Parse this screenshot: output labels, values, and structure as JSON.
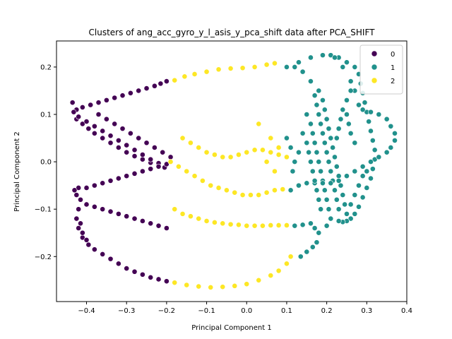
{
  "chart_data": {
    "type": "scatter",
    "title": "Clusters of ang_acc_gyro_y_l_asis_y_pca_shift data after PCA_SHIFT",
    "xlabel": "Principal Component 1",
    "ylabel": "Principal Component 2",
    "xlim": [
      -0.475,
      0.4
    ],
    "ylim": [
      -0.295,
      0.255
    ],
    "xticks": [
      "−0.4",
      "−0.3",
      "−0.2",
      "−0.1",
      "0.0",
      "0.1",
      "0.2",
      "0.3",
      "0.4"
    ],
    "xtick_values": [
      -0.4,
      -0.3,
      -0.2,
      -0.1,
      0.0,
      0.1,
      0.2,
      0.3,
      0.4
    ],
    "yticks": [
      "−0.2",
      "−0.1",
      "0.0",
      "0.1",
      "0.2"
    ],
    "ytick_values": [
      -0.2,
      -0.1,
      0.0,
      0.1,
      0.2
    ],
    "grid": false,
    "legend_position": "top-right",
    "series": [
      {
        "name": "0",
        "color": "#440154",
        "points": [
          [
            -0.2,
            0.17
          ],
          [
            -0.215,
            0.165
          ],
          [
            -0.23,
            0.16
          ],
          [
            -0.25,
            0.155
          ],
          [
            -0.27,
            0.15
          ],
          [
            -0.29,
            0.145
          ],
          [
            -0.31,
            0.14
          ],
          [
            -0.33,
            0.135
          ],
          [
            -0.35,
            0.13
          ],
          [
            -0.37,
            0.125
          ],
          [
            -0.39,
            0.12
          ],
          [
            -0.41,
            0.115
          ],
          [
            -0.425,
            0.11
          ],
          [
            -0.435,
            0.125
          ],
          [
            -0.432,
            0.105
          ],
          [
            -0.425,
            0.09
          ],
          [
            -0.41,
            0.08
          ],
          [
            -0.395,
            0.07
          ],
          [
            -0.38,
            0.06
          ],
          [
            -0.36,
            0.05
          ],
          [
            -0.34,
            0.04
          ],
          [
            -0.32,
            0.03
          ],
          [
            -0.3,
            0.02
          ],
          [
            -0.28,
            0.012
          ],
          [
            -0.26,
            0.005
          ],
          [
            -0.24,
            -0.002
          ],
          [
            -0.22,
            -0.008
          ],
          [
            -0.205,
            -0.012
          ],
          [
            -0.42,
            0.095
          ],
          [
            -0.4,
            0.085
          ],
          [
            -0.38,
            0.075
          ],
          [
            -0.36,
            0.065
          ],
          [
            -0.34,
            0.055
          ],
          [
            -0.32,
            0.045
          ],
          [
            -0.3,
            0.035
          ],
          [
            -0.28,
            0.025
          ],
          [
            -0.26,
            0.015
          ],
          [
            -0.24,
            0.005
          ],
          [
            -0.22,
            -0.003
          ],
          [
            -0.37,
            0.1
          ],
          [
            -0.35,
            0.09
          ],
          [
            -0.33,
            0.08
          ],
          [
            -0.31,
            0.07
          ],
          [
            -0.29,
            0.06
          ],
          [
            -0.27,
            0.05
          ],
          [
            -0.25,
            0.04
          ],
          [
            -0.23,
            0.03
          ],
          [
            -0.21,
            0.02
          ],
          [
            -0.19,
            0.01
          ],
          [
            -0.2,
            -0.005
          ],
          [
            -0.22,
            -0.01
          ],
          [
            -0.24,
            -0.015
          ],
          [
            -0.26,
            -0.02
          ],
          [
            -0.28,
            -0.025
          ],
          [
            -0.3,
            -0.03
          ],
          [
            -0.32,
            -0.035
          ],
          [
            -0.34,
            -0.04
          ],
          [
            -0.36,
            -0.045
          ],
          [
            -0.38,
            -0.05
          ],
          [
            -0.4,
            -0.055
          ],
          [
            -0.42,
            -0.055
          ],
          [
            -0.43,
            -0.06
          ],
          [
            -0.425,
            -0.07
          ],
          [
            -0.415,
            -0.08
          ],
          [
            -0.4,
            -0.09
          ],
          [
            -0.38,
            -0.095
          ],
          [
            -0.36,
            -0.1
          ],
          [
            -0.34,
            -0.105
          ],
          [
            -0.32,
            -0.11
          ],
          [
            -0.3,
            -0.115
          ],
          [
            -0.28,
            -0.12
          ],
          [
            -0.26,
            -0.125
          ],
          [
            -0.24,
            -0.13
          ],
          [
            -0.22,
            -0.135
          ],
          [
            -0.2,
            -0.14
          ],
          [
            -0.42,
            -0.1
          ],
          [
            -0.425,
            -0.12
          ],
          [
            -0.42,
            -0.14
          ],
          [
            -0.41,
            -0.16
          ],
          [
            -0.395,
            -0.175
          ],
          [
            -0.38,
            -0.185
          ],
          [
            -0.36,
            -0.195
          ],
          [
            -0.34,
            -0.205
          ],
          [
            -0.32,
            -0.215
          ],
          [
            -0.3,
            -0.225
          ],
          [
            -0.28,
            -0.232
          ],
          [
            -0.26,
            -0.238
          ],
          [
            -0.24,
            -0.244
          ],
          [
            -0.22,
            -0.248
          ],
          [
            -0.2,
            -0.252
          ],
          [
            -0.415,
            -0.13
          ],
          [
            -0.41,
            -0.15
          ],
          [
            -0.4,
            -0.165
          ]
        ]
      },
      {
        "name": "1",
        "color": "#21918c",
        "points": [
          [
            0.1,
            0.2
          ],
          [
            0.13,
            0.21
          ],
          [
            0.16,
            0.22
          ],
          [
            0.19,
            0.225
          ],
          [
            0.21,
            0.225
          ],
          [
            0.23,
            0.22
          ],
          [
            0.25,
            0.21
          ],
          [
            0.27,
            0.2
          ],
          [
            0.28,
            0.185
          ],
          [
            0.285,
            0.165
          ],
          [
            0.29,
            0.145
          ],
          [
            0.295,
            0.125
          ],
          [
            0.3,
            0.105
          ],
          [
            0.305,
            0.085
          ],
          [
            0.31,
            0.065
          ],
          [
            0.315,
            0.045
          ],
          [
            0.32,
            0.025
          ],
          [
            0.32,
            0.005
          ],
          [
            0.315,
            -0.015
          ],
          [
            0.31,
            -0.035
          ],
          [
            0.3,
            -0.055
          ],
          [
            0.29,
            -0.075
          ],
          [
            0.28,
            -0.095
          ],
          [
            0.27,
            -0.11
          ],
          [
            0.26,
            -0.12
          ],
          [
            0.25,
            -0.125
          ],
          [
            0.24,
            -0.127
          ],
          [
            0.23,
            -0.125
          ],
          [
            0.12,
            0.2
          ],
          [
            0.14,
            0.19
          ],
          [
            0.16,
            0.17
          ],
          [
            0.18,
            0.15
          ],
          [
            0.19,
            0.13
          ],
          [
            0.195,
            0.11
          ],
          [
            0.2,
            0.09
          ],
          [
            0.205,
            0.07
          ],
          [
            0.21,
            0.05
          ],
          [
            0.215,
            0.03
          ],
          [
            0.22,
            0.01
          ],
          [
            0.225,
            -0.01
          ],
          [
            0.23,
            -0.03
          ],
          [
            0.235,
            -0.05
          ],
          [
            0.24,
            -0.07
          ],
          [
            0.245,
            -0.09
          ],
          [
            0.25,
            -0.11
          ],
          [
            0.17,
            0.14
          ],
          [
            0.175,
            0.12
          ],
          [
            0.18,
            0.1
          ],
          [
            0.185,
            0.08
          ],
          [
            0.19,
            0.06
          ],
          [
            0.195,
            0.04
          ],
          [
            0.2,
            0.02
          ],
          [
            0.205,
            0.0
          ],
          [
            0.21,
            -0.02
          ],
          [
            0.215,
            -0.04
          ],
          [
            0.22,
            -0.06
          ],
          [
            0.225,
            -0.08
          ],
          [
            0.23,
            -0.1
          ],
          [
            0.15,
            0.1
          ],
          [
            0.16,
            0.08
          ],
          [
            0.165,
            0.06
          ],
          [
            0.17,
            0.04
          ],
          [
            0.175,
            0.02
          ],
          [
            0.18,
            0.0
          ],
          [
            0.185,
            -0.02
          ],
          [
            0.19,
            -0.04
          ],
          [
            0.195,
            -0.06
          ],
          [
            0.2,
            -0.08
          ],
          [
            0.205,
            -0.1
          ],
          [
            0.21,
            -0.12
          ],
          [
            0.2,
            -0.135
          ],
          [
            0.22,
            0.22
          ],
          [
            0.24,
            0.2
          ],
          [
            0.26,
            0.17
          ],
          [
            0.27,
            0.15
          ],
          [
            0.28,
            0.12
          ],
          [
            0.29,
            0.11
          ],
          [
            0.31,
            0.105
          ],
          [
            0.33,
            0.1
          ],
          [
            0.35,
            0.09
          ],
          [
            0.36,
            0.075
          ],
          [
            0.37,
            0.06
          ],
          [
            0.37,
            0.045
          ],
          [
            0.36,
            0.03
          ],
          [
            0.35,
            0.02
          ],
          [
            0.33,
            0.01
          ],
          [
            0.31,
            0.0
          ],
          [
            0.29,
            -0.01
          ],
          [
            0.27,
            -0.02
          ],
          [
            0.25,
            -0.03
          ],
          [
            0.23,
            -0.04
          ],
          [
            0.21,
            -0.045
          ],
          [
            0.19,
            -0.045
          ],
          [
            0.17,
            -0.045
          ],
          [
            0.15,
            -0.045
          ],
          [
            0.13,
            -0.05
          ],
          [
            0.11,
            -0.06
          ],
          [
            0.3,
            -0.02
          ],
          [
            0.29,
            -0.03
          ],
          [
            0.28,
            -0.05
          ],
          [
            0.27,
            -0.07
          ],
          [
            0.26,
            -0.09
          ],
          [
            0.13,
            0.02
          ],
          [
            0.12,
            0.0
          ],
          [
            0.115,
            -0.02
          ],
          [
            0.11,
            0.03
          ],
          [
            0.1,
            0.05
          ],
          [
            0.14,
            0.06
          ],
          [
            0.15,
            0.04
          ],
          [
            0.155,
            0.02
          ],
          [
            0.16,
            0.0
          ],
          [
            0.165,
            -0.02
          ],
          [
            0.17,
            -0.04
          ],
          [
            0.175,
            -0.06
          ],
          [
            0.18,
            -0.08
          ],
          [
            0.185,
            -0.1
          ],
          [
            0.16,
            -0.13
          ],
          [
            0.17,
            -0.14
          ],
          [
            0.18,
            -0.15
          ],
          [
            0.175,
            -0.17
          ],
          [
            0.165,
            -0.18
          ],
          [
            0.15,
            -0.19
          ],
          [
            0.135,
            -0.2
          ],
          [
            0.12,
            -0.135
          ],
          [
            0.14,
            -0.133
          ],
          [
            0.26,
            0.15
          ],
          [
            0.25,
            0.13
          ],
          [
            0.24,
            0.11
          ],
          [
            0.235,
            0.09
          ],
          [
            0.23,
            0.07
          ],
          [
            0.225,
            0.05
          ],
          [
            0.27,
            0.04
          ],
          [
            0.26,
            0.06
          ],
          [
            0.255,
            0.08
          ],
          [
            0.25,
            0.1
          ]
        ]
      },
      {
        "name": "2",
        "color": "#fde725",
        "points": [
          [
            -0.18,
            0.172
          ],
          [
            -0.155,
            0.18
          ],
          [
            -0.13,
            0.185
          ],
          [
            -0.1,
            0.19
          ],
          [
            -0.07,
            0.195
          ],
          [
            -0.04,
            0.197
          ],
          [
            -0.01,
            0.198
          ],
          [
            0.02,
            0.2
          ],
          [
            0.05,
            0.205
          ],
          [
            0.07,
            0.208
          ],
          [
            -0.16,
            0.05
          ],
          [
            -0.14,
            0.04
          ],
          [
            -0.12,
            0.03
          ],
          [
            -0.1,
            0.02
          ],
          [
            -0.08,
            0.015
          ],
          [
            -0.06,
            0.01
          ],
          [
            -0.04,
            0.01
          ],
          [
            -0.02,
            0.015
          ],
          [
            0.0,
            0.02
          ],
          [
            0.02,
            0.025
          ],
          [
            0.04,
            0.025
          ],
          [
            0.06,
            0.02
          ],
          [
            0.08,
            0.015
          ],
          [
            0.1,
            0.01
          ],
          [
            -0.19,
            0.0
          ],
          [
            -0.17,
            -0.01
          ],
          [
            -0.15,
            -0.02
          ],
          [
            -0.13,
            -0.03
          ],
          [
            -0.11,
            -0.04
          ],
          [
            -0.09,
            -0.05
          ],
          [
            -0.07,
            -0.055
          ],
          [
            -0.05,
            -0.06
          ],
          [
            -0.03,
            -0.065
          ],
          [
            -0.01,
            -0.07
          ],
          [
            0.01,
            -0.07
          ],
          [
            0.03,
            -0.07
          ],
          [
            0.05,
            -0.065
          ],
          [
            0.07,
            -0.06
          ],
          [
            0.09,
            -0.058
          ],
          [
            -0.18,
            -0.1
          ],
          [
            -0.16,
            -0.11
          ],
          [
            -0.14,
            -0.115
          ],
          [
            -0.12,
            -0.12
          ],
          [
            -0.1,
            -0.125
          ],
          [
            -0.08,
            -0.128
          ],
          [
            -0.06,
            -0.13
          ],
          [
            -0.04,
            -0.132
          ],
          [
            -0.02,
            -0.133
          ],
          [
            0.0,
            -0.135
          ],
          [
            0.02,
            -0.135
          ],
          [
            0.04,
            -0.135
          ],
          [
            0.06,
            -0.134
          ],
          [
            0.08,
            -0.134
          ],
          [
            0.1,
            -0.134
          ],
          [
            -0.18,
            -0.255
          ],
          [
            -0.15,
            -0.26
          ],
          [
            -0.12,
            -0.263
          ],
          [
            -0.09,
            -0.265
          ],
          [
            -0.06,
            -0.264
          ],
          [
            -0.03,
            -0.262
          ],
          [
            0.0,
            -0.258
          ],
          [
            0.03,
            -0.25
          ],
          [
            0.06,
            -0.24
          ],
          [
            0.08,
            -0.23
          ],
          [
            0.1,
            -0.215
          ],
          [
            0.11,
            -0.2
          ],
          [
            0.03,
            0.08
          ],
          [
            0.06,
            0.05
          ],
          [
            0.08,
            0.03
          ],
          [
            0.05,
            0.0
          ],
          [
            0.07,
            -0.02
          ]
        ]
      }
    ]
  }
}
